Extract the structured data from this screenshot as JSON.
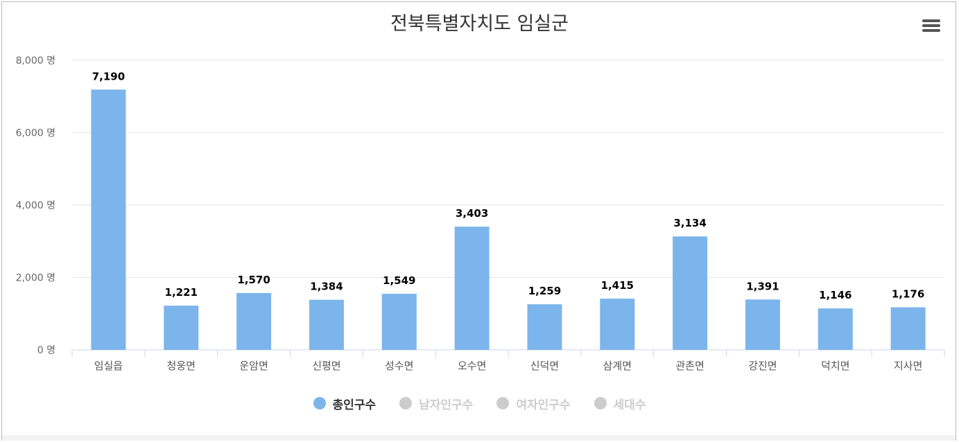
{
  "chart_data": {
    "type": "bar",
    "title": "전북특별자치도 임실군",
    "categories": [
      "임실읍",
      "청웅면",
      "운암면",
      "신평면",
      "성수면",
      "오수면",
      "신덕면",
      "삼계면",
      "관촌면",
      "강진면",
      "덕치면",
      "지사면"
    ],
    "series": [
      {
        "name": "총인구수",
        "values": [
          7190,
          1221,
          1570,
          1384,
          1549,
          3403,
          1259,
          1415,
          3134,
          1391,
          1146,
          1176
        ]
      }
    ],
    "value_labels": [
      "7,190",
      "1,221",
      "1,570",
      "1,384",
      "1,549",
      "3,403",
      "1,259",
      "1,415",
      "3,134",
      "1,391",
      "1,146",
      "1,176"
    ],
    "ylim": [
      0,
      8000
    ],
    "yticks": [
      0,
      2000,
      4000,
      6000,
      8000
    ],
    "ytick_labels": [
      "0 명",
      "2,000 명",
      "4,000 명",
      "6,000 명",
      "8,000 명"
    ],
    "grid": true,
    "legend_position": "bottom-center",
    "colors": {
      "bar": "#7cb5ec",
      "grid": "#e6e6e6",
      "axis": "#ccd6eb"
    }
  },
  "legend": {
    "items": [
      {
        "label": "총인구수",
        "color": "#7cb5ec",
        "active": true
      },
      {
        "label": "남자인구수",
        "color": "#cccccc",
        "active": false
      },
      {
        "label": "여자인구수",
        "color": "#cccccc",
        "active": false
      },
      {
        "label": "세대수",
        "color": "#cccccc",
        "active": false
      }
    ]
  },
  "menu": {
    "icon": "hamburger-menu-icon"
  }
}
